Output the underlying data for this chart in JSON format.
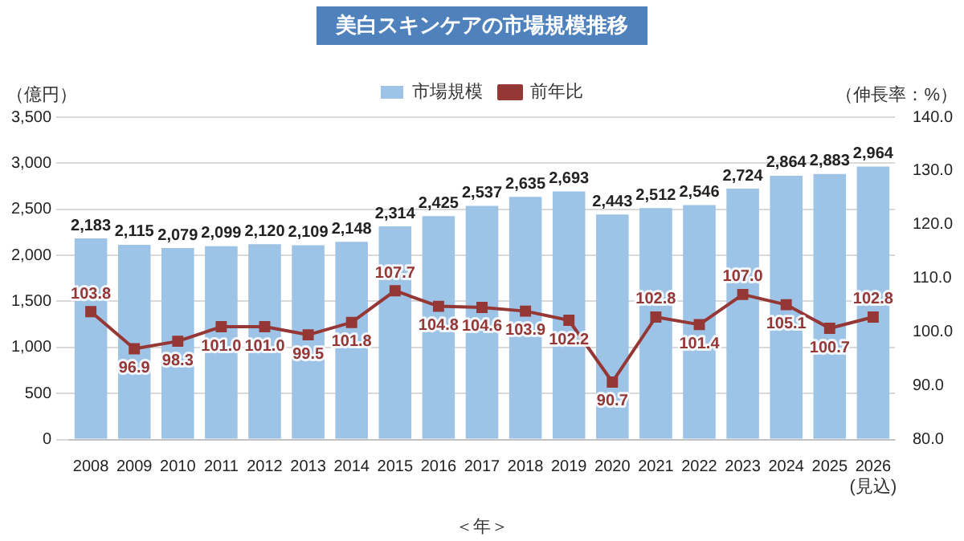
{
  "chart_data": {
    "type": "bar",
    "title": "美白スキンケアの市場規模推移",
    "ylabel": "（億円）",
    "y2label": "（伸長率：%）",
    "xlabel": "＜年＞",
    "categories": [
      "2008",
      "2009",
      "2010",
      "2011",
      "2012",
      "2013",
      "2014",
      "2015",
      "2016",
      "2017",
      "2018",
      "2019",
      "2020",
      "2021",
      "2022",
      "2023",
      "2024",
      "2025",
      "2026"
    ],
    "series": [
      {
        "name": "市場規模",
        "color": "#9dc3e6",
        "values": [
          2183,
          2115,
          2079,
          2099,
          2120,
          2109,
          2148,
          2314,
          2425,
          2537,
          2635,
          2693,
          2443,
          2512,
          2546,
          2724,
          2864,
          2883,
          2964
        ],
        "value_labels": [
          "2,183",
          "2,115",
          "2,079",
          "2,099",
          "2,120",
          "2,109",
          "2,148",
          "2,314",
          "2,425",
          "2,537",
          "2,635",
          "2,693",
          "2,443",
          "2,512",
          "2,546",
          "2,724",
          "2,864",
          "2,883",
          "2,964"
        ]
      },
      {
        "name": "前年比",
        "type": "line",
        "axis": "y2",
        "color": "#953735",
        "values": [
          103.8,
          96.9,
          98.3,
          101.0,
          101.0,
          99.5,
          101.8,
          107.7,
          104.8,
          104.6,
          103.9,
          102.2,
          90.7,
          102.8,
          101.4,
          107.0,
          105.1,
          100.7,
          102.8
        ],
        "value_labels": [
          "103.8",
          "96.9",
          "98.3",
          "101.0",
          "101.0",
          "99.5",
          "101.8",
          "107.7",
          "104.8",
          "104.6",
          "103.9",
          "102.2",
          "90.7",
          "102.8",
          "101.4",
          "107.0",
          "105.1",
          "100.7",
          "102.8"
        ]
      }
    ],
    "ylim": [
      0,
      3500
    ],
    "yticks": [
      0,
      500,
      {
        "value": 1000,
        "label": "1,000"
      },
      {
        "value": 1500,
        "label": "1,500"
      },
      {
        "value": 2000,
        "label": "2,000"
      },
      {
        "value": 2500,
        "label": "2,500"
      },
      {
        "value": 3000,
        "label": "3,000"
      },
      {
        "value": 3500,
        "label": "3,500"
      }
    ],
    "y2lim": [
      80,
      140
    ],
    "y2ticks": [
      {
        "value": 80,
        "label": "80.0"
      },
      {
        "value": 90,
        "label": "90.0"
      },
      {
        "value": 100,
        "label": "100.0"
      },
      {
        "value": 110,
        "label": "110.0"
      },
      {
        "value": 120,
        "label": "120.0"
      },
      {
        "value": 130,
        "label": "130.0"
      },
      {
        "value": 140,
        "label": "140.0"
      }
    ],
    "grid": "y",
    "legend": "top",
    "marker": "square",
    "annotations": [
      "(見込)"
    ]
  }
}
